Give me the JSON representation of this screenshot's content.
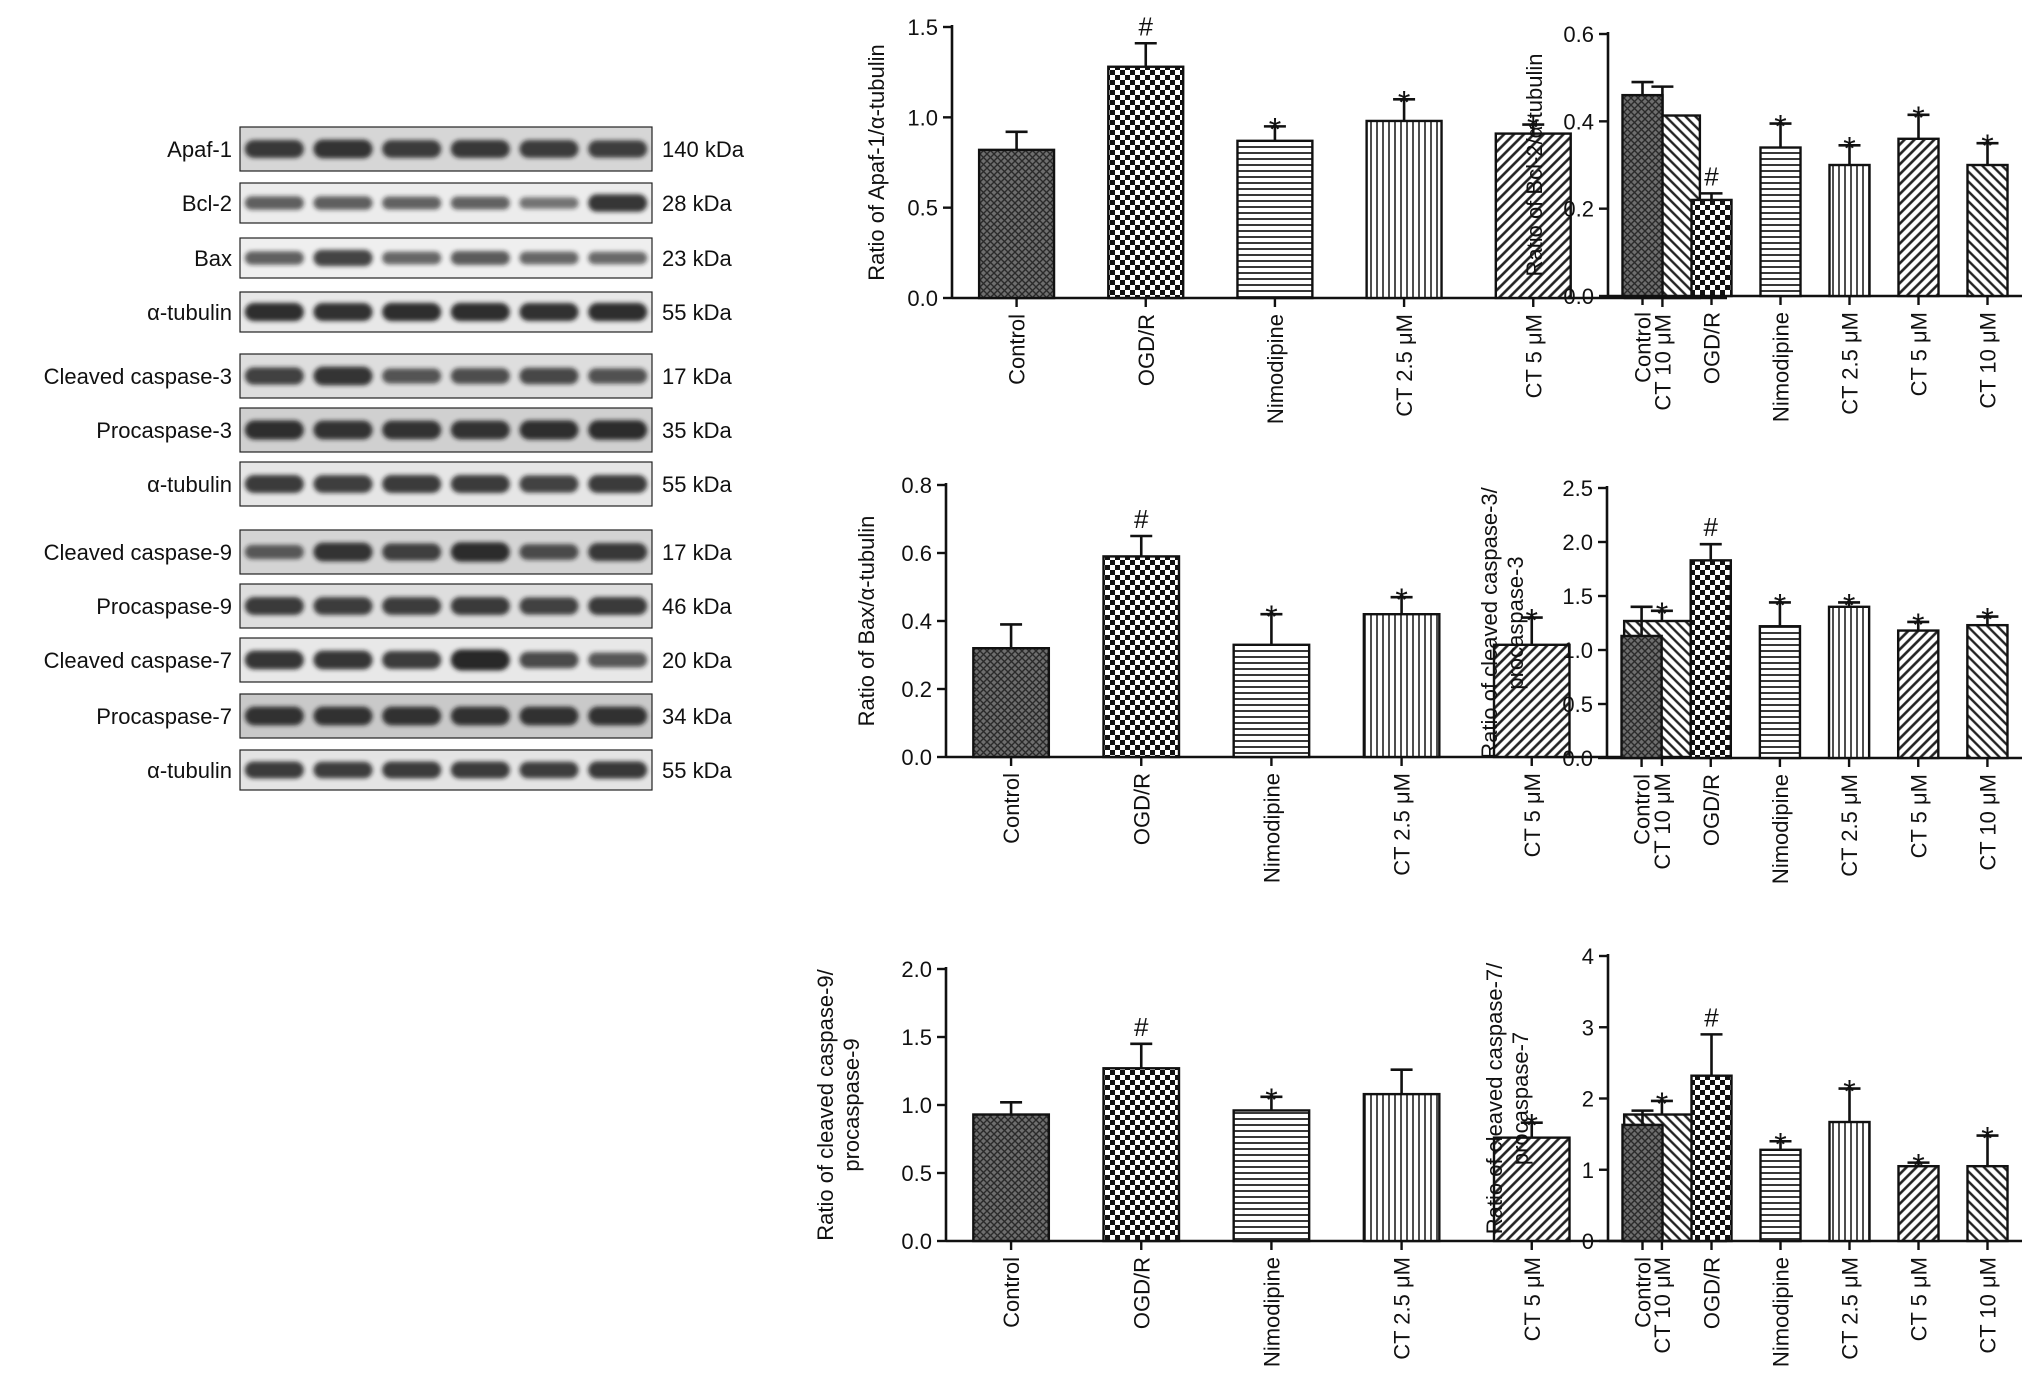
{
  "western_blot": {
    "rows": [
      {
        "label": "Apaf-1",
        "kda": "140 kDa",
        "lanes": [
          0.8,
          0.85,
          0.78,
          0.8,
          0.78,
          0.76
        ]
      },
      {
        "label": "Bcl-2",
        "kda": "28 kDa",
        "lanes": [
          0.55,
          0.55,
          0.52,
          0.52,
          0.4,
          0.85
        ]
      },
      {
        "label": "Bax",
        "kda": "23 kDa",
        "lanes": [
          0.55,
          0.75,
          0.5,
          0.58,
          0.5,
          0.48
        ]
      },
      {
        "label": "α-tubulin",
        "kda": "55 kDa",
        "lanes": [
          0.9,
          0.88,
          0.9,
          0.9,
          0.88,
          0.9
        ]
      },
      {
        "label": "Cleaved caspase-3",
        "kda": "17 kDa",
        "lanes": [
          0.75,
          0.85,
          0.6,
          0.65,
          0.7,
          0.62
        ]
      },
      {
        "label": "Procaspase-3",
        "kda": "35 kDa",
        "lanes": [
          0.88,
          0.85,
          0.85,
          0.85,
          0.88,
          0.9
        ]
      },
      {
        "label": "α-tubulin",
        "kda": "55 kDa",
        "lanes": [
          0.8,
          0.78,
          0.8,
          0.8,
          0.75,
          0.8
        ]
      },
      {
        "label": "Cleaved caspase-9",
        "kda": "17 kDa",
        "lanes": [
          0.55,
          0.85,
          0.75,
          0.9,
          0.65,
          0.8
        ]
      },
      {
        "label": "Procaspase-9",
        "kda": "46 kDa",
        "lanes": [
          0.8,
          0.78,
          0.78,
          0.8,
          0.75,
          0.8
        ]
      },
      {
        "label": "Cleaved caspase-7",
        "kda": "20 kDa",
        "lanes": [
          0.85,
          0.85,
          0.8,
          1.0,
          0.7,
          0.6
        ]
      },
      {
        "label": "Procaspase-7",
        "kda": "34 kDa",
        "lanes": [
          0.85,
          0.85,
          0.85,
          0.85,
          0.85,
          0.85
        ]
      },
      {
        "label": "α-tubulin",
        "kda": "55 kDa",
        "lanes": [
          0.8,
          0.78,
          0.8,
          0.8,
          0.78,
          0.82
        ]
      }
    ]
  },
  "chart_data": [
    {
      "type": "bar",
      "ylabel": "Ratio of Apaf-1/α-tubulin",
      "categories": [
        "Control",
        "OGD/R",
        "Nimodipine",
        "CT 2.5 μM",
        "CT 5 μM",
        "CT 10 μM"
      ],
      "values": [
        0.82,
        1.28,
        0.87,
        0.98,
        0.91,
        1.01
      ],
      "errors": [
        0.1,
        0.13,
        0.08,
        0.12,
        0.05,
        0.16
      ],
      "marks": [
        "",
        "#",
        "*",
        "*",
        "*",
        ""
      ],
      "ylim": [
        0,
        1.5
      ],
      "yticks": [
        "0.0",
        "0.5",
        "1.0",
        "1.5"
      ]
    },
    {
      "type": "bar",
      "ylabel": "Ratio of Bcl-2/α-tubulin",
      "categories": [
        "Control",
        "OGD/R",
        "Nimodipine",
        "CT 2.5 μM",
        "CT 5 μM",
        "CT 10 μM"
      ],
      "values": [
        0.46,
        0.22,
        0.34,
        0.3,
        0.36,
        0.3
      ],
      "errors": [
        0.03,
        0.015,
        0.055,
        0.045,
        0.055,
        0.05
      ],
      "marks": [
        "",
        "#",
        "*",
        "*",
        "*",
        "*"
      ],
      "ylim": [
        0,
        0.6
      ],
      "yticks": [
        "0.0",
        "0.2",
        "0.4",
        "0.6"
      ]
    },
    {
      "type": "bar",
      "ylabel": "Ratio of Bax/α-tubulin",
      "categories": [
        "Control",
        "OGD/R",
        "Nimodipine",
        "CT 2.5 μM",
        "CT 5 μM",
        "CT 10 μM"
      ],
      "values": [
        0.32,
        0.59,
        0.33,
        0.42,
        0.33,
        0.4
      ],
      "errors": [
        0.07,
        0.06,
        0.09,
        0.05,
        0.08,
        0.03
      ],
      "marks": [
        "",
        "#",
        "*",
        "*",
        "*",
        "*"
      ],
      "ylim": [
        0,
        0.8
      ],
      "yticks": [
        "0.0",
        "0.2",
        "0.4",
        "0.6",
        "0.8"
      ]
    },
    {
      "type": "bar",
      "ylabel_lines": [
        "Ratio of cleaved caspase-3/",
        "procaspase-3"
      ],
      "categories": [
        "Control",
        "OGD/R",
        "Nimodipine",
        "CT 2.5 μM",
        "CT 5 μM",
        "CT 10 μM"
      ],
      "values": [
        1.13,
        1.83,
        1.22,
        1.4,
        1.18,
        1.23
      ],
      "errors": [
        0.27,
        0.15,
        0.22,
        0.04,
        0.08,
        0.08
      ],
      "marks": [
        "",
        "#",
        "*",
        "*",
        "*",
        "*"
      ],
      "ylim": [
        0,
        2.5
      ],
      "yticks": [
        "0.0",
        "0.5",
        "1.0",
        "1.5",
        "2.0",
        "2.5"
      ]
    },
    {
      "type": "bar",
      "ylabel_lines": [
        "Ratio of cleaved caspase-9/",
        "procaspase-9"
      ],
      "categories": [
        "Control",
        "OGD/R",
        "Nimodipine",
        "CT 2.5 μM",
        "CT 5 μM",
        "CT 10 μM"
      ],
      "values": [
        0.93,
        1.27,
        0.96,
        1.08,
        0.76,
        0.93
      ],
      "errors": [
        0.09,
        0.18,
        0.1,
        0.18,
        0.11,
        0.1
      ],
      "marks": [
        "",
        "#",
        "*",
        "",
        "*",
        "*"
      ],
      "ylim": [
        0,
        2.0
      ],
      "yticks": [
        "0.0",
        "0.5",
        "1.0",
        "1.5",
        "2.0"
      ]
    },
    {
      "type": "bar",
      "ylabel_lines": [
        "Ratio of cleaved caspase-7/",
        "procaspase-7"
      ],
      "categories": [
        "Control",
        "OGD/R",
        "Nimodipine",
        "CT 2.5 μM",
        "CT 5 μM",
        "CT 10 μM"
      ],
      "values": [
        1.63,
        2.32,
        1.28,
        1.67,
        1.05,
        1.05
      ],
      "errors": [
        0.2,
        0.58,
        0.12,
        0.47,
        0.05,
        0.43
      ],
      "marks": [
        "",
        "#",
        "*",
        "*",
        "*",
        "*"
      ],
      "ylim": [
        0,
        4
      ],
      "yticks": [
        "0",
        "1",
        "2",
        "3",
        "4"
      ]
    }
  ]
}
